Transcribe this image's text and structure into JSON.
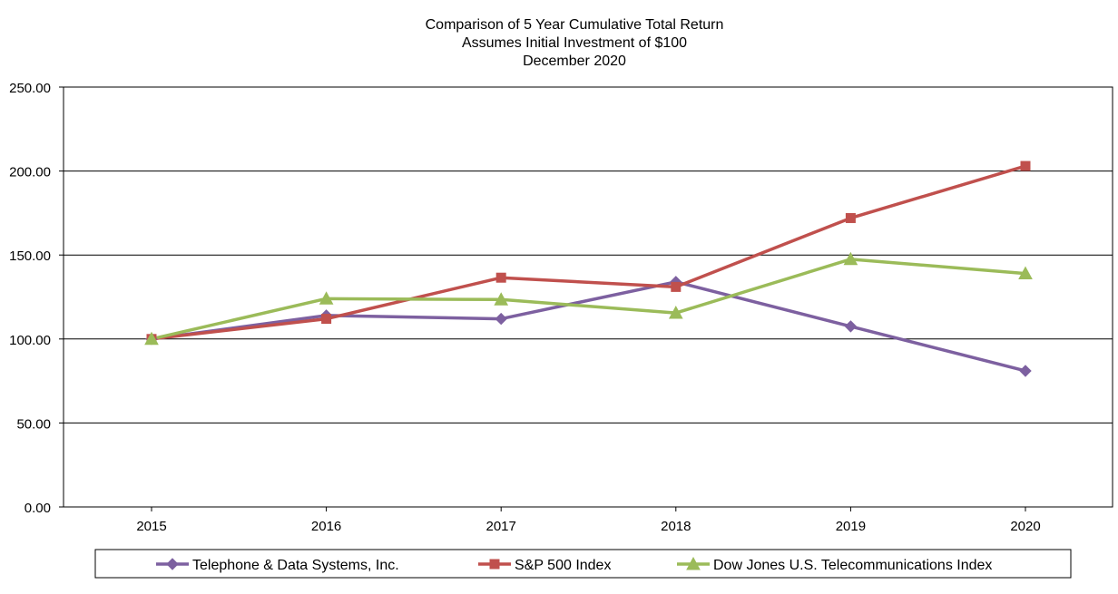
{
  "chart_data": {
    "type": "line",
    "title": [
      "Comparison of 5 Year Cumulative Total Return",
      "Assumes Initial Investment of $100",
      "December 2020"
    ],
    "categories": [
      "2015",
      "2016",
      "2017",
      "2018",
      "2019",
      "2020"
    ],
    "y_tick_labels": [
      "0.00",
      "50.00",
      "100.00",
      "150.00",
      "200.00",
      "250.00"
    ],
    "ylim": [
      0,
      250
    ],
    "grid": "horizontal",
    "legend_position": "bottom",
    "series": [
      {
        "name": "Telephone & Data Systems, Inc.",
        "values": [
          100,
          114,
          112,
          134,
          107.5,
          81
        ],
        "color": "#7d60a0",
        "marker": "diamond"
      },
      {
        "name": "S&P 500 Index",
        "values": [
          100,
          112,
          136.5,
          131,
          172,
          203
        ],
        "color": "#c0504d",
        "marker": "square"
      },
      {
        "name": "Dow Jones U.S. Telecommunications Index",
        "values": [
          100,
          124,
          123.5,
          115.5,
          147.5,
          139
        ],
        "color": "#9bbb59",
        "marker": "triangle"
      }
    ]
  }
}
